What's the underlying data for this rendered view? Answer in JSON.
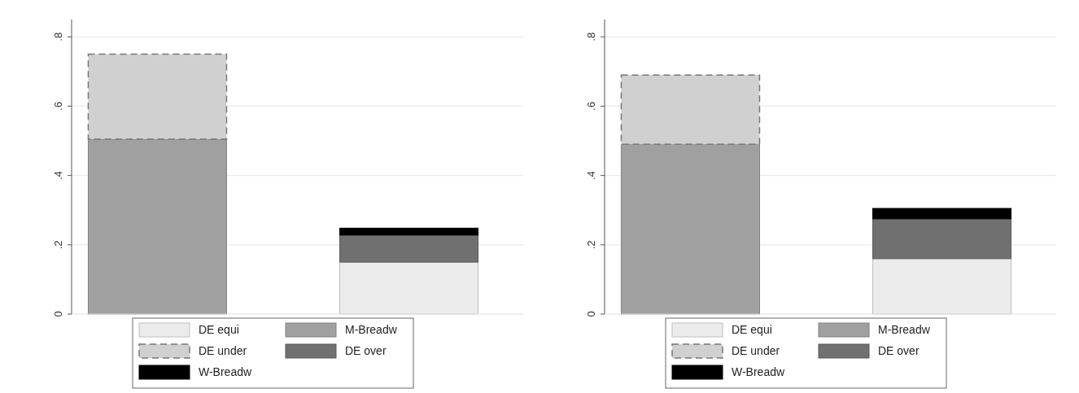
{
  "chart_data": [
    {
      "type": "bar",
      "stacked": true,
      "categories": [
        null,
        null
      ],
      "series": [
        {
          "name": "DE equi",
          "color": "#ebebeb",
          "values": [
            null,
            0.15
          ]
        },
        {
          "name": "M-Breadw",
          "color": "#a0a0a0",
          "values": [
            0.505,
            null
          ]
        },
        {
          "name": "DE under",
          "color": "#d0d0d0",
          "values": [
            0.245,
            null
          ],
          "line_style": "dashed"
        },
        {
          "name": "DE over",
          "color": "#707070",
          "values": [
            null,
            0.078
          ]
        },
        {
          "name": "W-Breadw",
          "color": "#000000",
          "values": [
            null,
            0.02
          ]
        }
      ],
      "ylim": [
        0,
        0.85
      ],
      "yticks": [
        0,
        {
          "value": 0.2,
          "label": ".2"
        },
        {
          "value": 0.4,
          "label": ".4"
        },
        {
          "value": 0.6,
          "label": ".6"
        },
        {
          "value": 0.8,
          "label": ".8"
        }
      ],
      "grid": "y",
      "legend": "bottom"
    },
    {
      "type": "bar",
      "stacked": true,
      "categories": [
        null,
        null
      ],
      "series": [
        {
          "name": "DE equi",
          "color": "#ebebeb",
          "values": [
            null,
            0.16
          ]
        },
        {
          "name": "M-Breadw",
          "color": "#a0a0a0",
          "values": [
            0.49,
            null
          ]
        },
        {
          "name": "DE under",
          "color": "#d0d0d0",
          "values": [
            0.2,
            null
          ],
          "line_style": "dashed"
        },
        {
          "name": "DE over",
          "color": "#707070",
          "values": [
            null,
            0.115
          ]
        },
        {
          "name": "W-Breadw",
          "color": "#000000",
          "values": [
            null,
            0.03
          ]
        }
      ],
      "ylim": [
        0,
        0.85
      ],
      "yticks": [
        0,
        {
          "value": 0.2,
          "label": ".2"
        },
        {
          "value": 0.4,
          "label": ".4"
        },
        {
          "value": 0.6,
          "label": ".6"
        },
        {
          "value": 0.8,
          "label": ".8"
        }
      ],
      "grid": "y",
      "legend": "bottom"
    }
  ]
}
